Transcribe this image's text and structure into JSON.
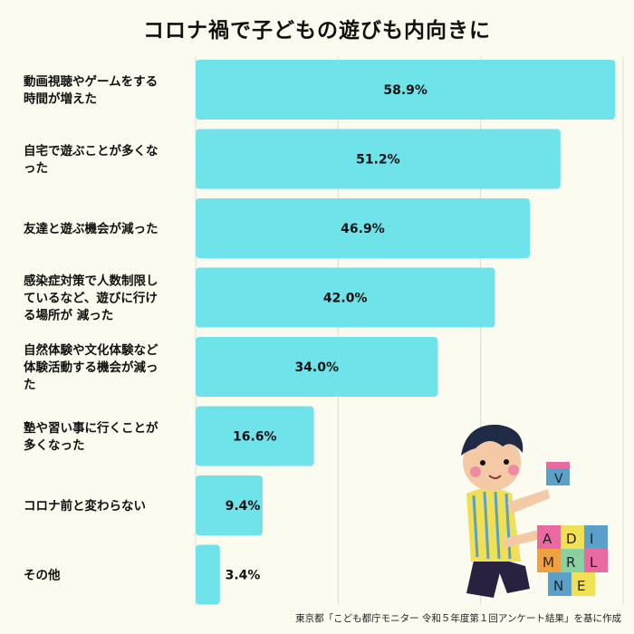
{
  "title": "コロナ禍で子どもの遊びも内向きに",
  "source": "東京都「こども都庁モニター 令和５年度第１回アンケート結果」を基に作成",
  "colors": {
    "bar": "#6ee3ea",
    "grid": "#d9d9d9",
    "background": "#fcfbef"
  },
  "chart_data": {
    "type": "bar",
    "orientation": "horizontal",
    "categories": [
      [
        "動画視聴やゲームをする",
        "時間が増えた"
      ],
      [
        "自宅で遊ぶことが多くな",
        "った"
      ],
      [
        "友達と遊ぶ機会が減った"
      ],
      [
        "感染症対策で人数制限し",
        "ているなど、遊びに行け",
        "る場所が 減った"
      ],
      [
        "自然体験や文化体験など",
        "体験活動する機会が減っ",
        "た"
      ],
      [
        "塾や習い事に行くことが",
        "多くなった"
      ],
      [
        "コロナ前と変わらない"
      ],
      [
        "その他"
      ]
    ],
    "values": [
      58.9,
      51.2,
      46.9,
      42.0,
      34.0,
      16.6,
      9.4,
      3.4
    ],
    "value_labels": [
      "58.9%",
      "51.2%",
      "46.9%",
      "42.0%",
      "34.0%",
      "16.6%",
      "9.4%",
      "3.4%"
    ],
    "unit": "%",
    "xlim": [
      0,
      60
    ],
    "grid": true
  }
}
